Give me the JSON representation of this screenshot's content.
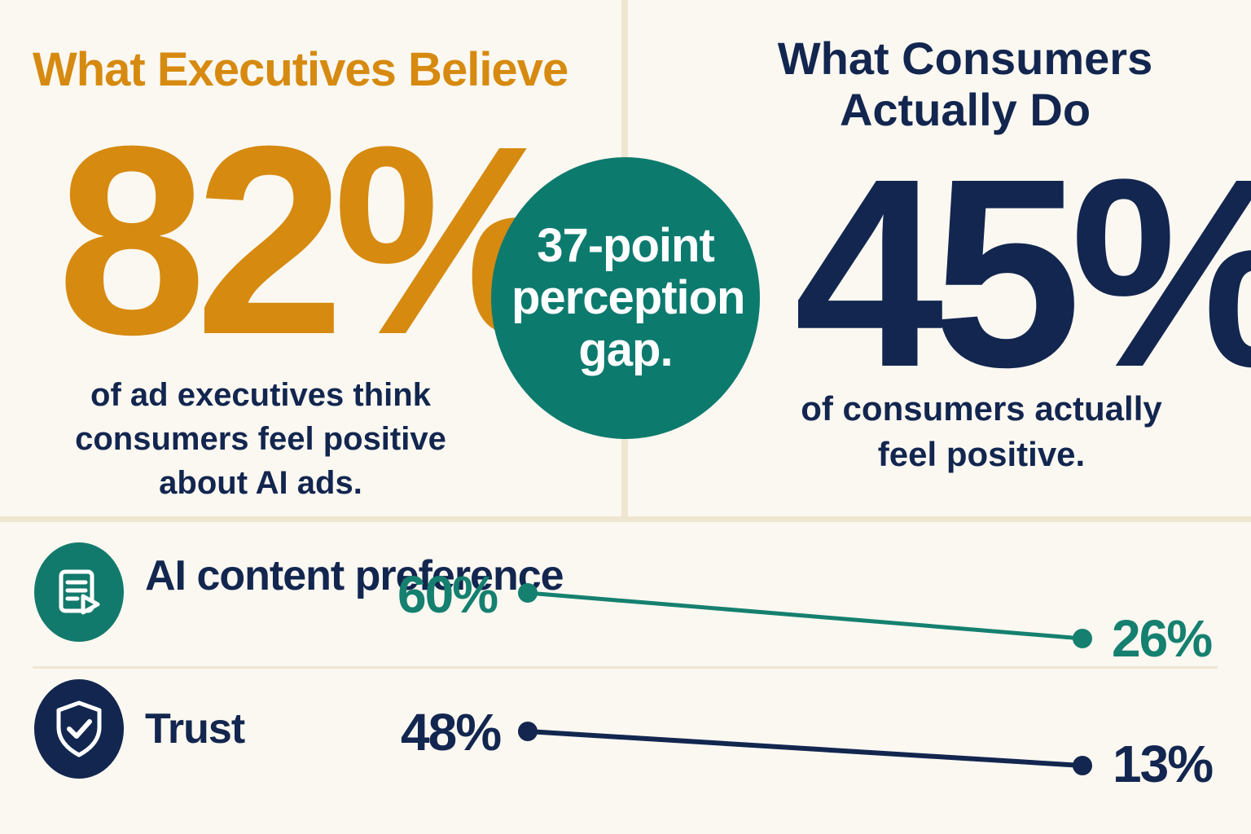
{
  "executives": {
    "title": "What Executives Believe",
    "value": "82%",
    "description": "of ad executives think consumers feel positive about AI ads."
  },
  "consumers": {
    "title": "What Consumers Actually Do",
    "value": "45%",
    "description": "of consumers actually feel positive."
  },
  "gap": {
    "text": "37-point perception gap."
  },
  "comparisons": [
    {
      "label": "AI content preference",
      "icon": "document-play-icon",
      "executive": "60%",
      "consumer": "26%",
      "color": "#15806f"
    },
    {
      "label": "Trust",
      "icon": "shield-check-icon",
      "executive": "48%",
      "consumer": "13%",
      "color": "#12264f"
    }
  ],
  "colors": {
    "orange": "#d68a10",
    "navy": "#12264f",
    "teal": "#0d7a6e",
    "background": "#fbf8f1"
  }
}
